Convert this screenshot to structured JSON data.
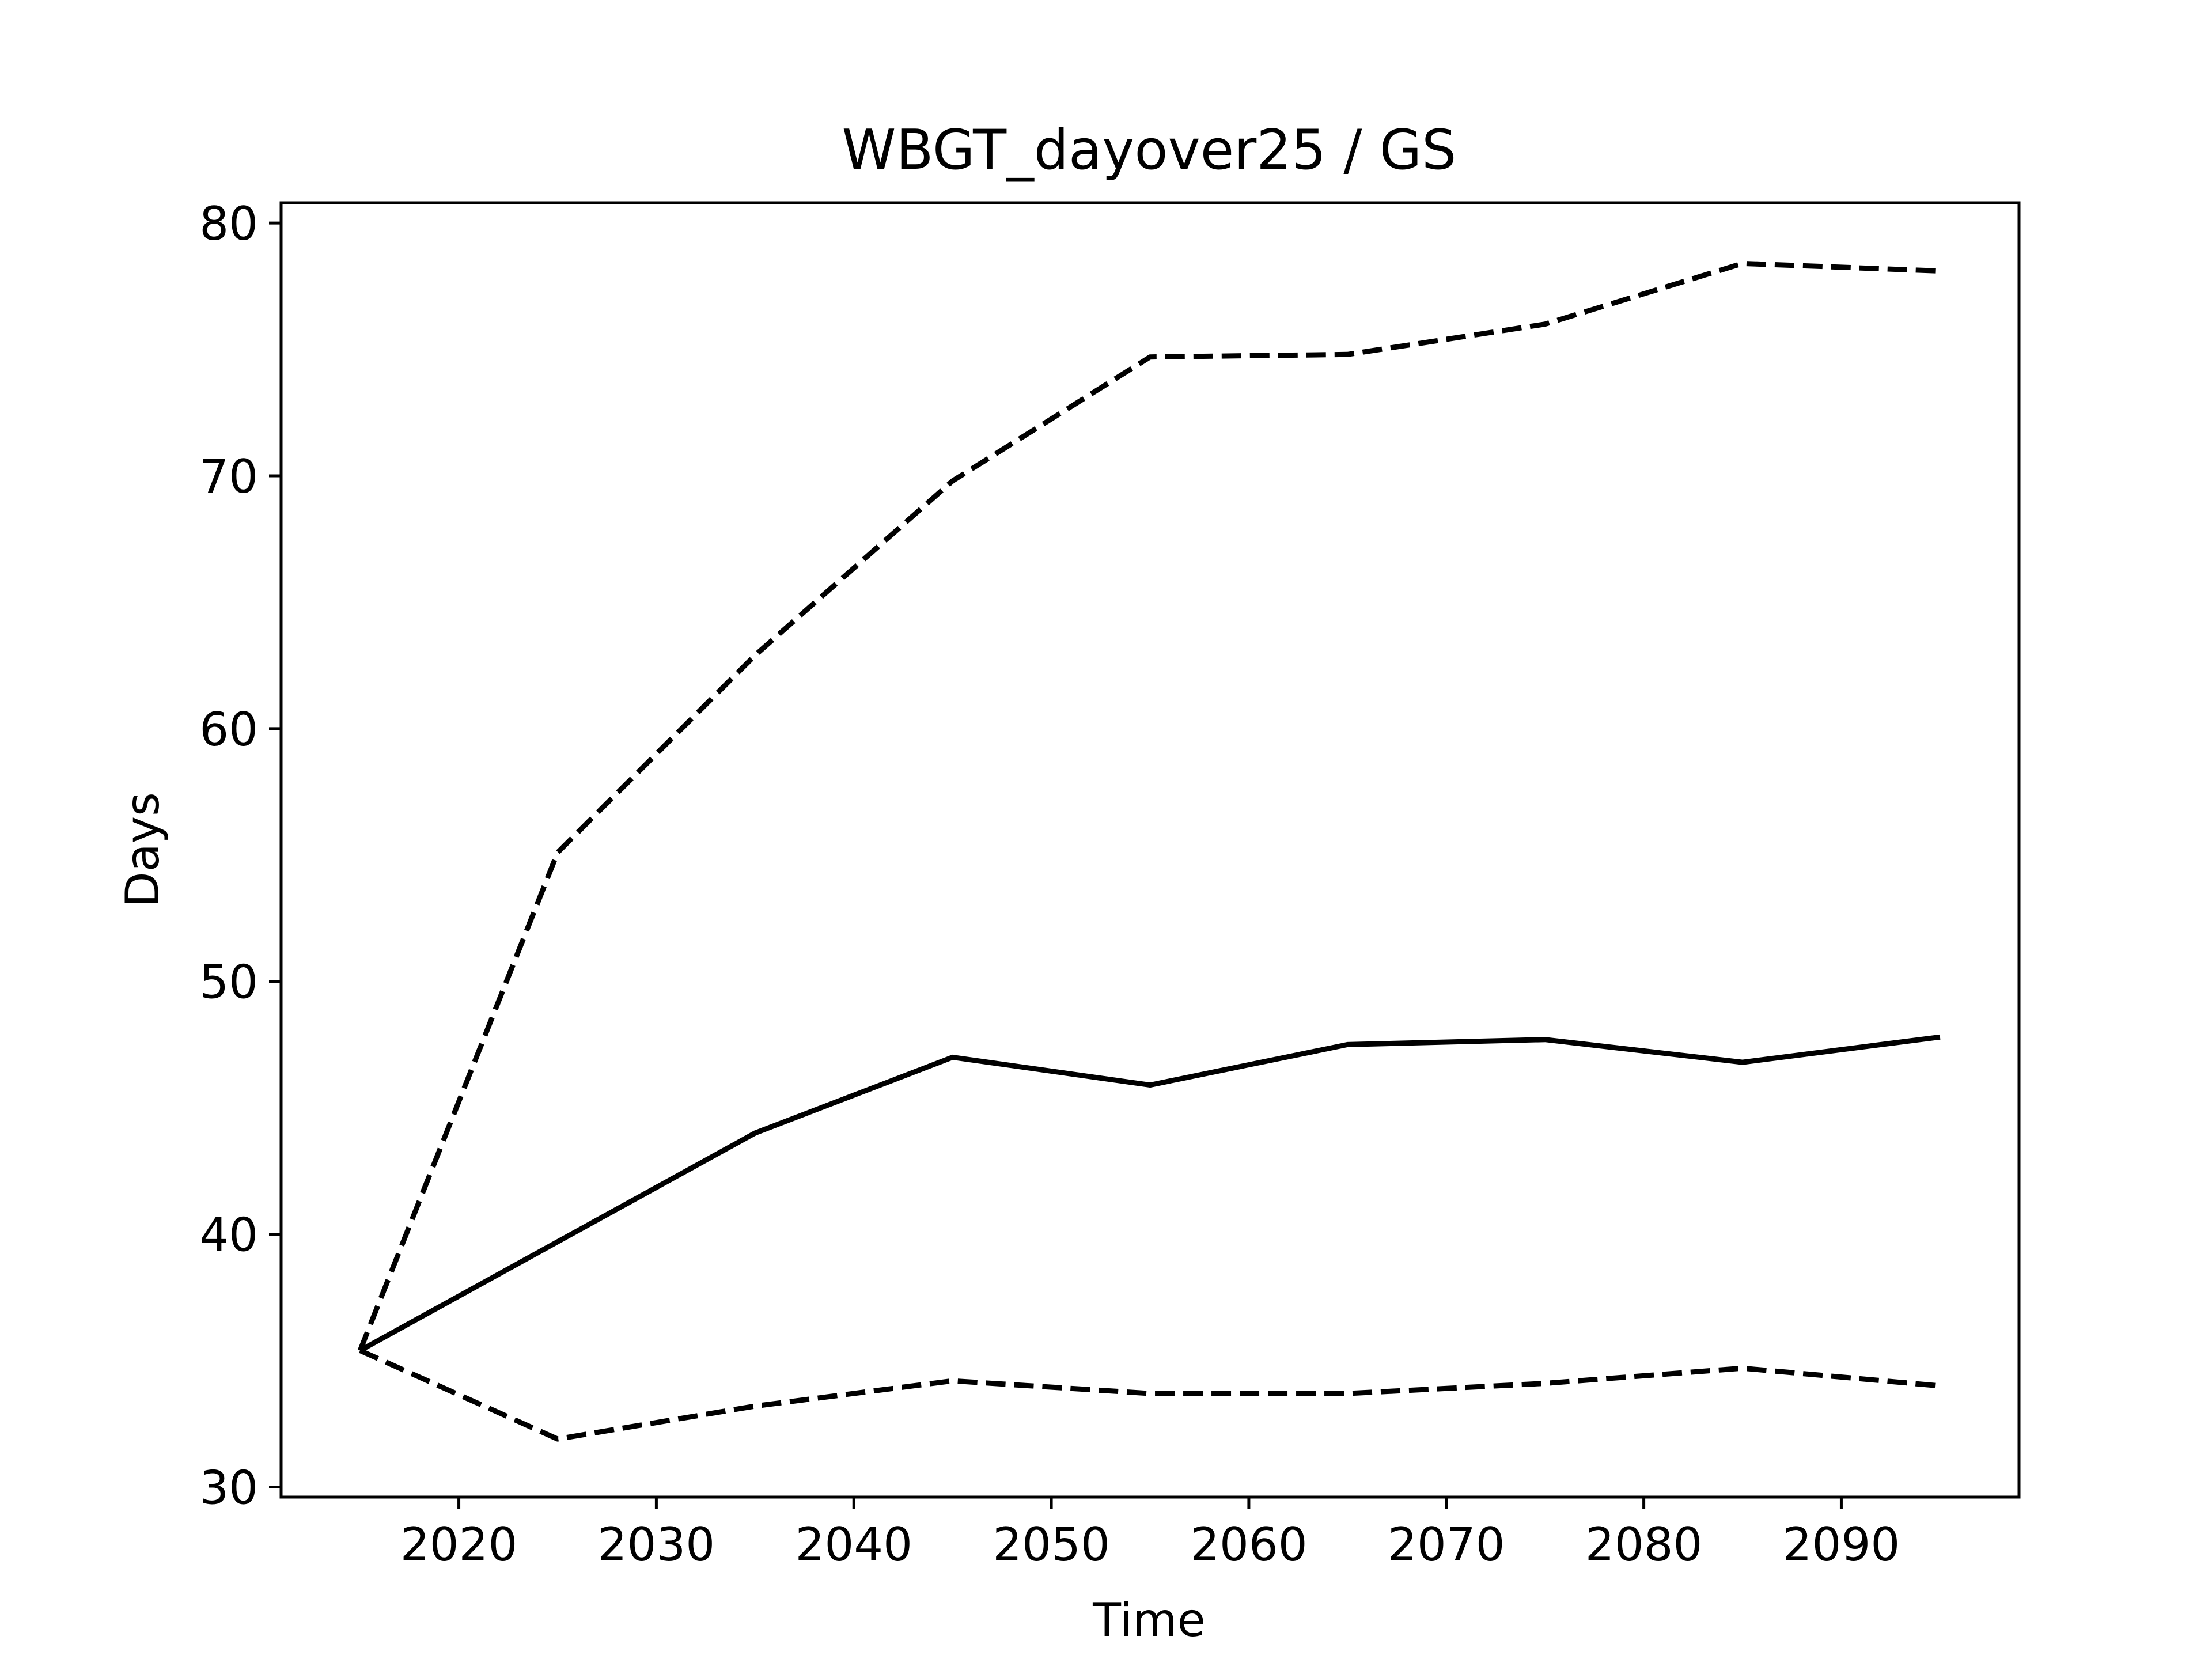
{
  "chart_data": {
    "type": "line",
    "title": "WBGT_dayover25 / GS",
    "xlabel": "Time",
    "ylabel": "Days",
    "xlim": [
      2011,
      2099
    ],
    "ylim": [
      29.6,
      80.8
    ],
    "x_ticks": [
      2020,
      2030,
      2040,
      2050,
      2060,
      2070,
      2080,
      2090
    ],
    "y_ticks": [
      30,
      40,
      50,
      60,
      70,
      80
    ],
    "x_tick_labels": [
      "2020",
      "2030",
      "2040",
      "2050",
      "2060",
      "2070",
      "2080",
      "2090"
    ],
    "y_tick_labels": [
      "30",
      "40",
      "50",
      "60",
      "70",
      "80"
    ],
    "grid": false,
    "legend": "none",
    "x": [
      2015,
      2025,
      2035,
      2045,
      2055,
      2065,
      2075,
      2085,
      2095
    ],
    "series": [
      {
        "style": "dashed",
        "color": "#000000",
        "values": [
          35.4,
          55.1,
          62.9,
          69.8,
          74.7,
          74.8,
          76.0,
          78.4,
          78.1
        ]
      },
      {
        "style": "solid",
        "color": "#000000",
        "values": [
          35.4,
          39.7,
          44.0,
          47.0,
          45.9,
          47.5,
          47.7,
          46.8,
          47.8
        ]
      },
      {
        "style": "dashed",
        "color": "#000000",
        "values": [
          35.4,
          31.9,
          33.2,
          34.2,
          33.7,
          33.7,
          34.1,
          34.7,
          34.0
        ]
      }
    ]
  }
}
